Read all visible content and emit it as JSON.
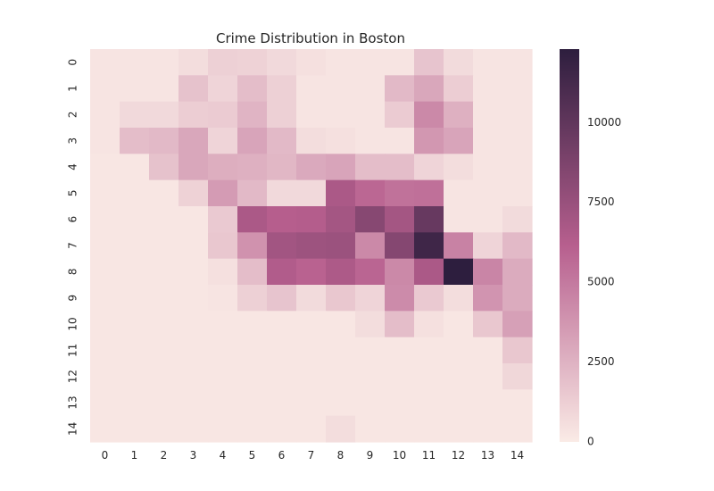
{
  "chart_data": {
    "type": "heatmap",
    "title": "Crime Distribution in Boston",
    "xlabel": "",
    "ylabel": "",
    "x_categories": [
      "0",
      "1",
      "2",
      "3",
      "4",
      "5",
      "6",
      "7",
      "8",
      "9",
      "10",
      "11",
      "12",
      "13",
      "14"
    ],
    "y_categories": [
      "0",
      "1",
      "2",
      "3",
      "4",
      "5",
      "6",
      "7",
      "8",
      "9",
      "10",
      "11",
      "12",
      "13",
      "14"
    ],
    "colorbar": {
      "min": 0,
      "max": 12300,
      "ticks": [
        0,
        2500,
        5000,
        7500,
        10000
      ]
    },
    "colors": {
      "low": "#faebe6",
      "mid": "#b75f8e",
      "high": "#2d1e3e"
    },
    "grid": false,
    "values": [
      [
        300,
        300,
        300,
        600,
        1200,
        1100,
        800,
        500,
        300,
        300,
        300,
        1700,
        700,
        300,
        300
      ],
      [
        300,
        300,
        300,
        1800,
        1000,
        2000,
        1200,
        300,
        300,
        300,
        2200,
        3000,
        1300,
        300,
        300
      ],
      [
        300,
        800,
        800,
        1300,
        1400,
        2400,
        1200,
        300,
        300,
        300,
        1400,
        4300,
        2600,
        300,
        300
      ],
      [
        300,
        2000,
        2200,
        3000,
        1000,
        3100,
        2200,
        600,
        500,
        300,
        300,
        3700,
        3100,
        300,
        300
      ],
      [
        200,
        200,
        1800,
        3000,
        2700,
        2600,
        2300,
        2900,
        3100,
        2000,
        2000,
        1000,
        600,
        300,
        300
      ],
      [
        200,
        200,
        200,
        1100,
        3500,
        2200,
        800,
        800,
        6700,
        5800,
        5300,
        5400,
        300,
        300,
        300
      ],
      [
        200,
        200,
        200,
        200,
        1500,
        6700,
        6200,
        6300,
        7000,
        8300,
        7000,
        9700,
        300,
        300,
        700
      ],
      [
        200,
        200,
        200,
        200,
        1600,
        3900,
        7100,
        7300,
        7400,
        4300,
        8400,
        11500,
        4600,
        1000,
        2200
      ],
      [
        200,
        200,
        200,
        200,
        500,
        2000,
        6400,
        6000,
        6600,
        5900,
        4300,
        6700,
        12300,
        4500,
        2800
      ],
      [
        200,
        200,
        200,
        200,
        300,
        1200,
        1700,
        700,
        1600,
        1000,
        4200,
        1500,
        600,
        3800,
        2800
      ],
      [
        200,
        200,
        200,
        200,
        200,
        200,
        200,
        200,
        200,
        600,
        2000,
        500,
        200,
        1600,
        3300
      ],
      [
        200,
        200,
        200,
        200,
        200,
        200,
        200,
        200,
        200,
        200,
        200,
        200,
        200,
        200,
        1600
      ],
      [
        200,
        200,
        200,
        200,
        200,
        200,
        200,
        200,
        200,
        200,
        200,
        200,
        200,
        200,
        900
      ],
      [
        200,
        200,
        200,
        200,
        200,
        200,
        200,
        200,
        200,
        200,
        200,
        200,
        200,
        200,
        200
      ],
      [
        200,
        200,
        200,
        200,
        200,
        200,
        200,
        200,
        600,
        200,
        200,
        200,
        200,
        200,
        200
      ]
    ]
  }
}
